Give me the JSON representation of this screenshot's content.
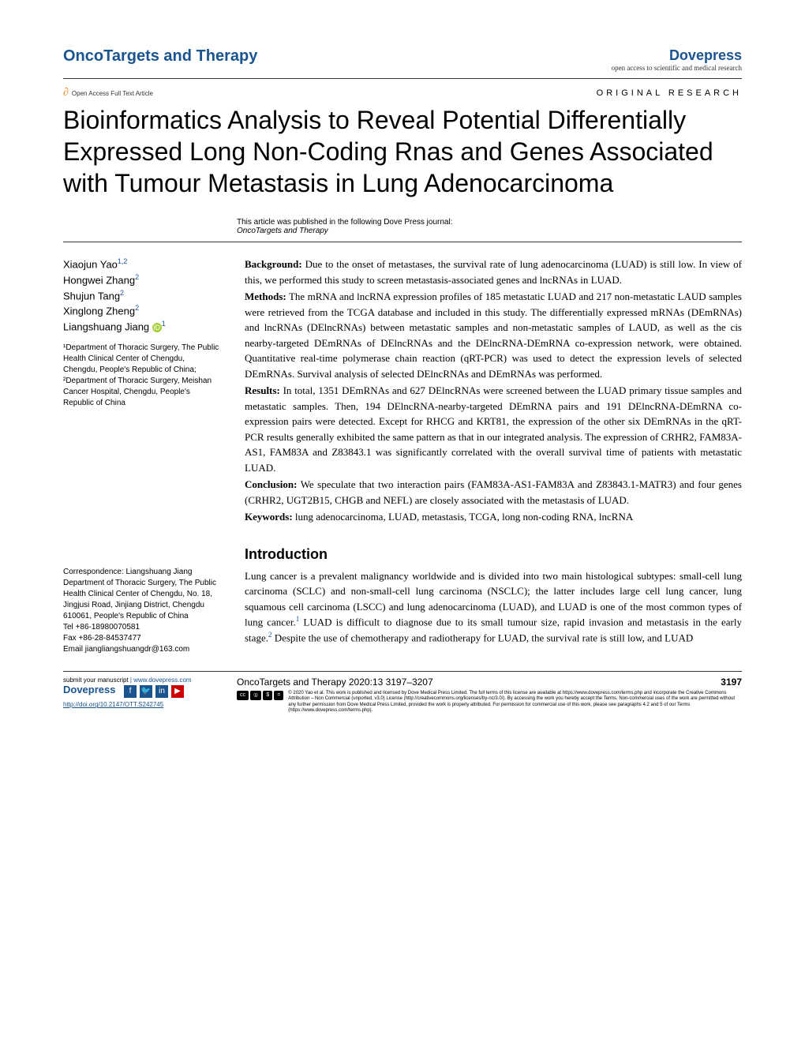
{
  "header": {
    "journal": "OncoTargets and Therapy",
    "publisher": "Dovepress",
    "publisher_tagline": "open access to scientific and medical research",
    "oa_label": "Open Access Full Text Article",
    "article_type": "ORIGINAL RESEARCH"
  },
  "title": "Bioinformatics Analysis to Reveal Potential Differentially Expressed Long Non-Coding Rnas and Genes Associated with Tumour Metastasis in Lung Adenocarcinoma",
  "journal_note": {
    "line1": "This article was published in the following Dove Press journal:",
    "line2": "OncoTargets and Therapy"
  },
  "authors": [
    {
      "name": "Xiaojun Yao",
      "affil": "1,2"
    },
    {
      "name": "Hongwei Zhang",
      "affil": "2"
    },
    {
      "name": "Shujun Tang",
      "affil": "2"
    },
    {
      "name": "Xinglong Zheng",
      "affil": "2"
    },
    {
      "name": "Liangshuang Jiang",
      "affil": "1",
      "orcid": true
    }
  ],
  "affiliations": "¹Department of Thoracic Surgery, The Public Health Clinical Center of Chengdu, Chengdu, People's Republic of China; ²Department of Thoracic Surgery, Meishan Cancer Hospital, Chengdu, People's Republic of China",
  "correspondence": {
    "label": "Correspondence: Liangshuang Jiang",
    "address": "Department of Thoracic Surgery, The Public Health Clinical Center of Chengdu, No. 18, Jingjusi Road, Jinjiang District, Chengdu 610061, People's Republic of China",
    "tel": "Tel +86-18980070581",
    "fax": "Fax +86-28-84537477",
    "email": "Email jiangliangshuangdr@163.com"
  },
  "abstract": {
    "background": {
      "label": "Background:",
      "text": " Due to the onset of metastases, the survival rate of lung adenocarcinoma (LUAD) is still low. In view of this, we performed this study to screen metastasis-associated genes and lncRNAs in LUAD."
    },
    "methods": {
      "label": "Methods:",
      "text": " The mRNA and lncRNA expression profiles of 185 metastatic LUAD and 217 non-metastatic LAUD samples were retrieved from the TCGA database and included in this study. The differentially expressed mRNAs (DEmRNAs) and lncRNAs (DElncRNAs) between metastatic samples and non-metastatic samples of LAUD, as well as the cis nearby-targeted DEmRNAs of DElncRNAs and the DElncRNA-DEmRNA co-expression network, were obtained. Quantitative real-time polymerase chain reaction (qRT-PCR) was used to detect the expression levels of selected DEmRNAs. Survival analysis of selected DElncRNAs and DEmRNAs was performed."
    },
    "results": {
      "label": "Results:",
      "text": " In total, 1351 DEmRNAs and 627 DElncRNAs were screened between the LUAD primary tissue samples and metastatic samples. Then, 194 DElncRNA-nearby-targeted DEmRNA pairs and 191 DElncRNA-DEmRNA co-expression pairs were detected. Except for RHCG and KRT81, the expression of the other six DEmRNAs in the qRT-PCR results generally exhibited the same pattern as that in our integrated analysis. The expression of CRHR2, FAM83A-AS1, FAM83A and Z83843.1 was significantly correlated with the overall survival time of patients with metastatic LUAD."
    },
    "conclusion": {
      "label": "Conclusion:",
      "text": " We speculate that two interaction pairs (FAM83A-AS1-FAM83A and Z83843.1-MATR3) and four genes (CRHR2, UGT2B15, CHGB and NEFL) are closely associated with the metastasis of LUAD."
    },
    "keywords": {
      "label": "Keywords:",
      "text": " lung adenocarcinoma, LUAD, metastasis, TCGA, long non-coding RNA, lncRNA"
    }
  },
  "introduction": {
    "heading": "Introduction",
    "body_parts": [
      "Lung cancer is a prevalent malignancy worldwide and is divided into two main histological subtypes: small-cell lung carcinoma (SCLC) and non-small-cell lung carcinoma (NSCLC); the latter includes large cell lung cancer, lung squamous cell carcinoma (LSCC) and lung adenocarcinoma (LUAD), and LUAD is one of the most common types of lung cancer.",
      " LUAD is difficult to diagnose due to its small tumour size, rapid invasion and metastasis in the early stage.",
      " Despite the use of chemotherapy and radiotherapy for LUAD, the survival rate is still low, and LUAD"
    ],
    "refs": [
      "1",
      "2"
    ]
  },
  "footer": {
    "submit": "submit your manuscript ",
    "submit_url": "| www.dovepress.com",
    "dovepress": "Dovepress",
    "doi": "http://doi.org/10.2147/OTT.S242745",
    "citation": "OncoTargets and Therapy 2020:13 3197–3207",
    "page_num": "3197",
    "cc_badges": [
      "cc",
      "①",
      "$",
      "="
    ],
    "cc_text": "© 2020 Yao et al. This work is published and licensed by Dove Medical Press Limited. The full terms of this license are available at https://www.dovepress.com/terms.php and incorporate the Creative Commons Attribution – Non Commercial (unported, v3.0) License (http://creativecommons.org/licenses/by-nc/3.0/). By accessing the work you hereby accept the Terms. Non-commercial uses of the work are permitted without any further permission from Dove Medical Press Limited, provided the work is properly attributed. For permission for commercial use of this work, please see paragraphs 4.2 and 5 of our Terms (https://www.dovepress.com/terms.php)."
  },
  "colors": {
    "link": "#1a5490",
    "oa_orange": "#f68b1f",
    "orcid": "#a6ce39"
  }
}
